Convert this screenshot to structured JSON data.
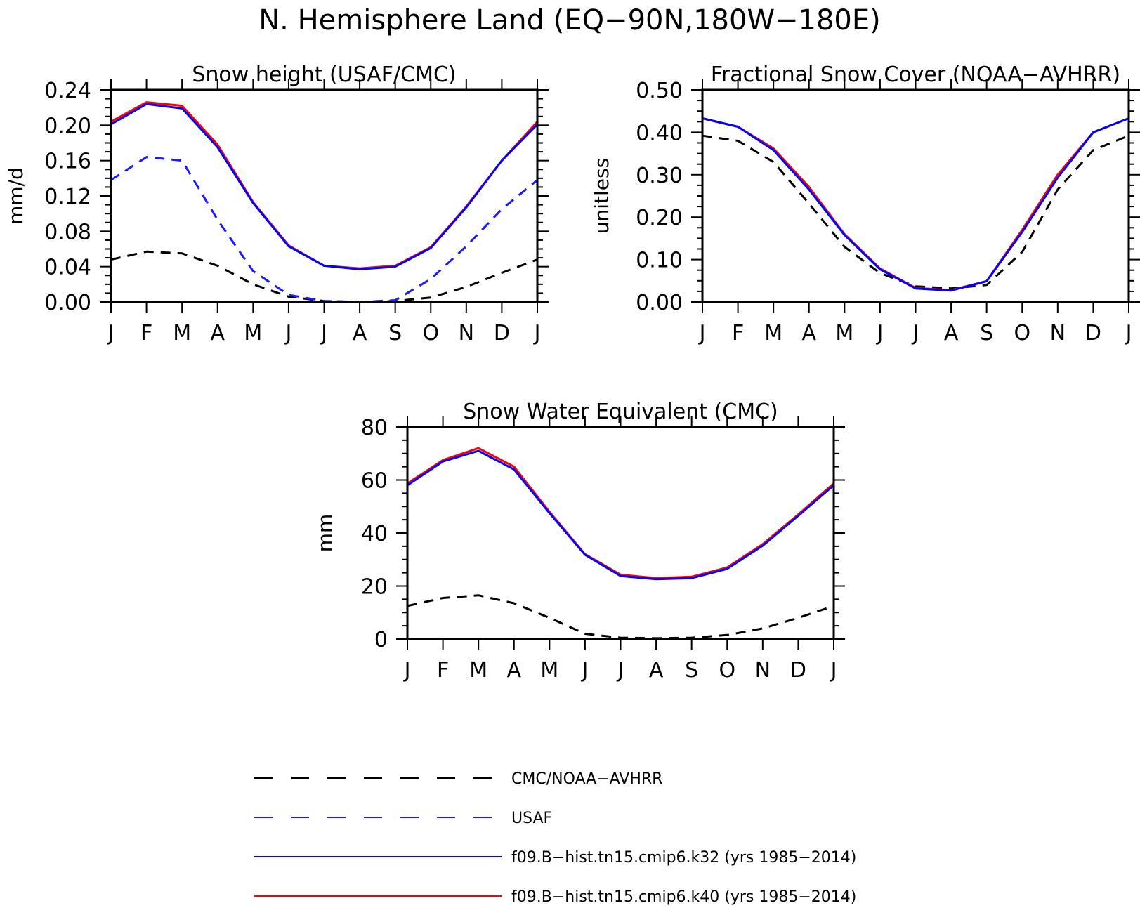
{
  "title": "N. Hemisphere Land (EQ−90N,180W−180E)",
  "colors": {
    "obs_black": "#000000",
    "usaf_blue": "#1a1aff",
    "k32_blue": "#0000ff",
    "k40_red": "#ff0000"
  },
  "chart_data": [
    {
      "type": "line",
      "title": "Snow height (USAF/CMC)",
      "xlabel": "",
      "ylabel": "mm/d",
      "categories": [
        "J",
        "F",
        "M",
        "A",
        "M",
        "J",
        "J",
        "A",
        "S",
        "O",
        "N",
        "D",
        "J"
      ],
      "ylim": [
        0,
        0.24
      ],
      "yticks": [
        "0.00",
        "0.04",
        "0.08",
        "0.12",
        "0.16",
        "0.20",
        "0.24"
      ],
      "grid": false,
      "series": [
        {
          "name": "CMC/NOAA−AVHRR",
          "style": "dashed",
          "color": "#000000",
          "values": [
            0.048,
            0.057,
            0.055,
            0.041,
            0.02,
            0.006,
            0.001,
            0.0,
            0.001,
            0.005,
            0.017,
            0.033,
            0.048
          ]
        },
        {
          "name": "USAF",
          "style": "dashed",
          "color": "#1a1aff",
          "values": [
            0.138,
            0.164,
            0.16,
            0.093,
            0.035,
            0.008,
            0.001,
            0.0,
            0.002,
            0.026,
            0.063,
            0.105,
            0.138
          ]
        },
        {
          "name": "f09.B−hist.tn15.cmip6.k40 (yrs 1985−2014)",
          "style": "solid",
          "color": "#ff0000",
          "values": [
            0.204,
            0.226,
            0.222,
            0.178,
            0.113,
            0.064,
            0.041,
            0.038,
            0.041,
            0.062,
            0.108,
            0.16,
            0.204
          ]
        },
        {
          "name": "f09.B−hist.tn15.cmip6.k32 (yrs 1985−2014)",
          "style": "solid",
          "color": "#0000ff",
          "values": [
            0.201,
            0.224,
            0.219,
            0.175,
            0.112,
            0.063,
            0.041,
            0.037,
            0.04,
            0.061,
            0.107,
            0.16,
            0.201
          ]
        }
      ]
    },
    {
      "type": "line",
      "title": "Fractional Snow Cover (NOAA−AVHRR)",
      "xlabel": "",
      "ylabel": "unitless",
      "categories": [
        "J",
        "F",
        "M",
        "A",
        "M",
        "J",
        "J",
        "A",
        "S",
        "O",
        "N",
        "D",
        "J"
      ],
      "ylim": [
        0,
        0.5
      ],
      "yticks": [
        "0.00",
        "0.10",
        "0.20",
        "0.30",
        "0.40",
        "0.50"
      ],
      "grid": false,
      "series": [
        {
          "name": "CMC/NOAA−AVHRR",
          "style": "dashed",
          "color": "#000000",
          "values": [
            0.392,
            0.38,
            0.33,
            0.232,
            0.13,
            0.068,
            0.037,
            0.032,
            0.04,
            0.118,
            0.265,
            0.358,
            0.392
          ]
        },
        {
          "name": "f09.B−hist.tn15.cmip6.k40 (yrs 1985−2014)",
          "style": "solid",
          "color": "#ff0000",
          "values": [
            0.433,
            0.413,
            0.362,
            0.271,
            0.16,
            0.079,
            0.033,
            0.028,
            0.049,
            0.17,
            0.3,
            0.4,
            0.433
          ]
        },
        {
          "name": "f09.B−hist.tn15.cmip6.k32 (yrs 1985−2014)",
          "style": "solid",
          "color": "#0000ff",
          "values": [
            0.433,
            0.413,
            0.358,
            0.265,
            0.158,
            0.077,
            0.032,
            0.027,
            0.049,
            0.165,
            0.293,
            0.4,
            0.433
          ]
        }
      ]
    },
    {
      "type": "line",
      "title": "Snow Water Equivalent (CMC)",
      "xlabel": "",
      "ylabel": "mm",
      "categories": [
        "J",
        "F",
        "M",
        "A",
        "M",
        "J",
        "J",
        "A",
        "S",
        "O",
        "N",
        "D",
        "J"
      ],
      "ylim": [
        0,
        80
      ],
      "yticks": [
        "0",
        "20",
        "40",
        "60",
        "80"
      ],
      "grid": false,
      "series": [
        {
          "name": "CMC/NOAA−AVHRR",
          "style": "dashed",
          "color": "#000000",
          "values": [
            12.5,
            15.5,
            16.5,
            13.5,
            8.0,
            2.0,
            0.5,
            0.3,
            0.5,
            1.5,
            4.0,
            8.0,
            12.5
          ]
        },
        {
          "name": "f09.B−hist.tn15.cmip6.k40 (yrs 1985−2014)",
          "style": "solid",
          "color": "#ff0000",
          "values": [
            58.7,
            67.5,
            72.0,
            65.0,
            48.0,
            32.0,
            24.3,
            23.0,
            23.5,
            27.0,
            35.8,
            47.0,
            58.7
          ]
        },
        {
          "name": "f09.B−hist.tn15.cmip6.k32 (yrs 1985−2014)",
          "style": "solid",
          "color": "#0000ff",
          "values": [
            58.0,
            67.0,
            71.0,
            64.0,
            47.5,
            31.8,
            23.8,
            22.6,
            23.0,
            26.5,
            35.2,
            46.5,
            58.0
          ]
        }
      ]
    }
  ],
  "legend": [
    {
      "label": "CMC/NOAA−AVHRR",
      "style": "dashed",
      "color": "#000000"
    },
    {
      "label": "USAF",
      "style": "dashed",
      "color": "#1a1aff"
    },
    {
      "label": "f09.B−hist.tn15.cmip6.k32 (yrs 1985−2014)",
      "style": "solid",
      "color": "#0000ff"
    },
    {
      "label": "f09.B−hist.tn15.cmip6.k40 (yrs 1985−2014)",
      "style": "solid",
      "color": "#ff0000"
    }
  ]
}
